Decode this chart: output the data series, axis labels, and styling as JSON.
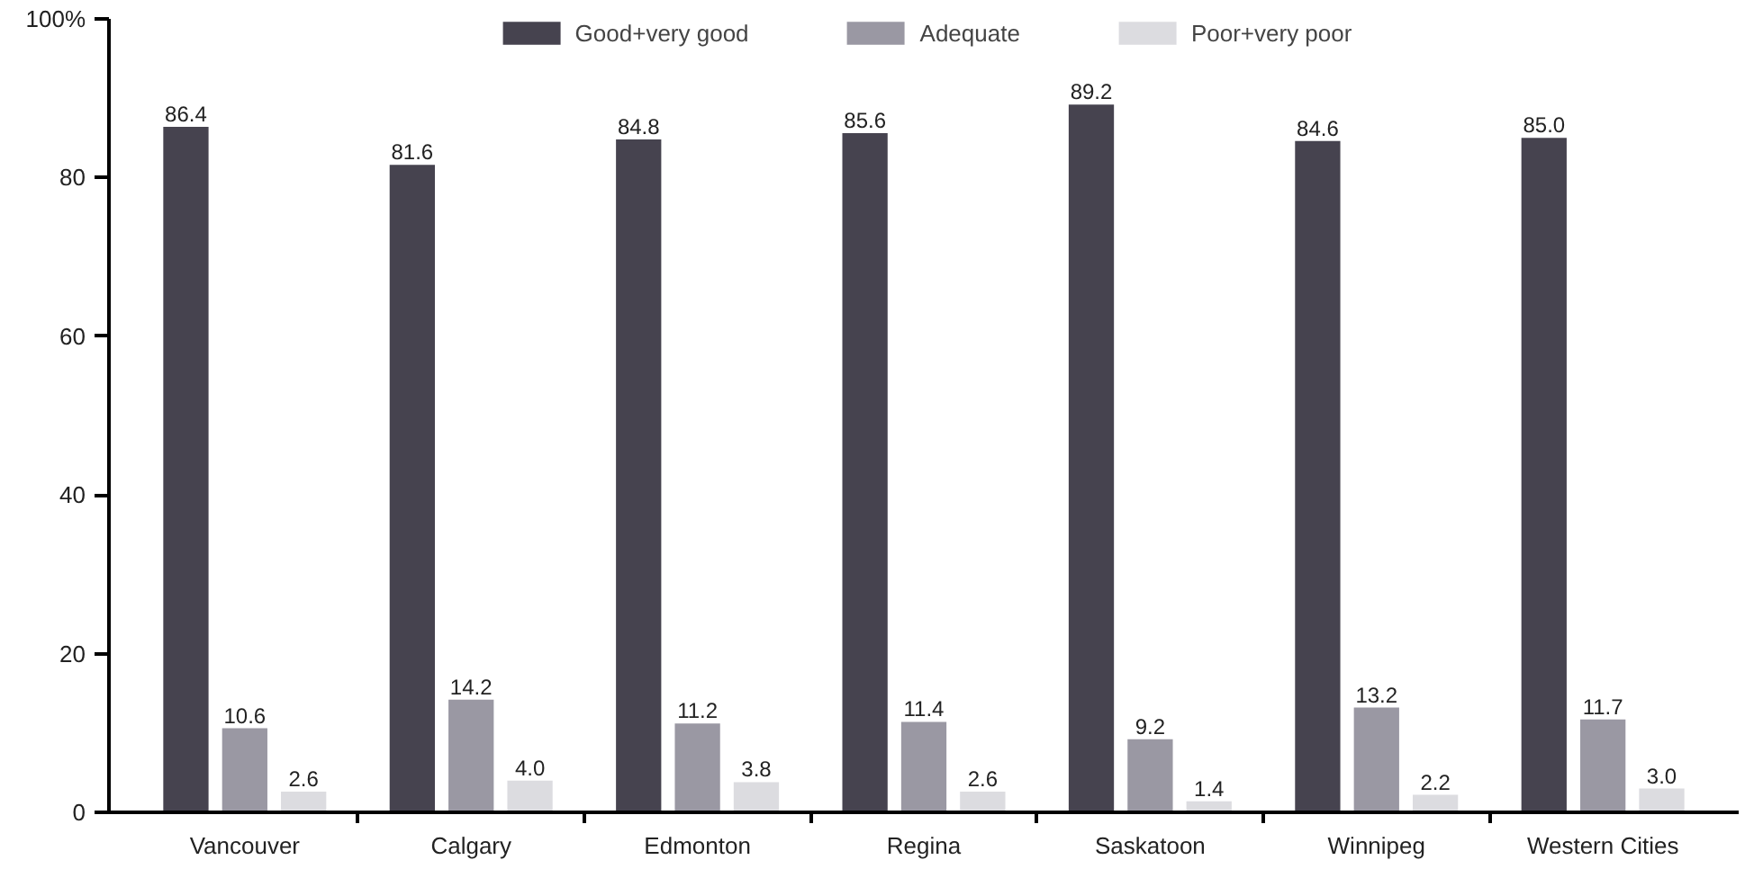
{
  "chart_data": {
    "type": "bar",
    "categories": [
      "Vancouver",
      "Calgary",
      "Edmonton",
      "Regina",
      "Saskatoon",
      "Winnipeg",
      "Western Cities"
    ],
    "series": [
      {
        "name": "Good+very good",
        "color": "#46434f",
        "values": [
          86.4,
          81.6,
          84.8,
          85.6,
          89.2,
          84.6,
          85.0
        ],
        "value_labels": [
          "86.4",
          "81.6",
          "84.8",
          "85.6",
          "89.2",
          "84.6",
          "85.0"
        ]
      },
      {
        "name": "Adequate",
        "color": "#9a98a3",
        "values": [
          10.6,
          14.2,
          11.2,
          11.4,
          9.2,
          13.2,
          11.7
        ],
        "value_labels": [
          "10.6",
          "14.2",
          "11.2",
          "11.4",
          "9.2",
          "13.2",
          "11.7"
        ]
      },
      {
        "name": "Poor+very poor",
        "color": "#dcdce0",
        "values": [
          2.6,
          4.0,
          3.8,
          2.6,
          1.4,
          2.2,
          3.0
        ],
        "value_labels": [
          "2.6",
          "4.0",
          "3.8",
          "2.6",
          "1.4",
          "2.2",
          "3.0"
        ]
      }
    ],
    "ylim": [
      0,
      100
    ],
    "yticks": [
      0,
      20,
      40,
      60,
      80,
      {
        "value": 100,
        "label": "100%"
      }
    ],
    "grid": false,
    "legend": "top"
  }
}
